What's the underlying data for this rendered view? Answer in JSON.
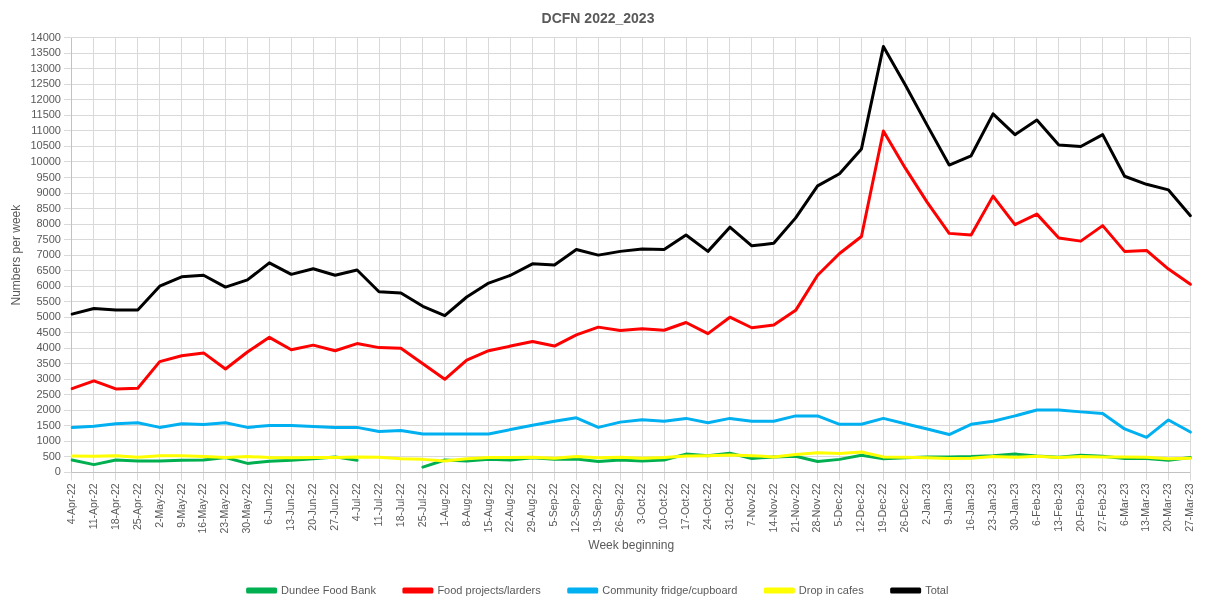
{
  "chart_data": {
    "type": "line",
    "title": "DCFN 2022_2023",
    "xlabel": "Week beginning",
    "ylabel": "Numbers per week",
    "categories": [
      "4-Apr-22",
      "11-Apr-22",
      "18-Apr-22",
      "25-Apr-22",
      "2-May-22",
      "9-May-22",
      "16-May-22",
      "23-May-22",
      "30-May-22",
      "6-Jun-22",
      "13-Jun-22",
      "20-Jun-22",
      "27-Jun-22",
      "4-Jul-22",
      "11-Jul-22",
      "18-Jul-22",
      "25-Jul-22",
      "1-Aug-22",
      "8-Aug-22",
      "15-Aug-22",
      "22-Aug-22",
      "29-Aug-22",
      "5-Sep-22",
      "12-Sep-22",
      "19-Sep-22",
      "26-Sep-22",
      "3-Oct-22",
      "10-Oct-22",
      "17-Oct-22",
      "24-Oct-22",
      "31-Oct-22",
      "7-Nov-22",
      "14-Nov-22",
      "21-Nov-22",
      "28-Nov-22",
      "5-Dec-22",
      "12-Dec-22",
      "19-Dec-22",
      "26-Dec-22",
      "2-Jan-23",
      "9-Jan-23",
      "16-Jan-23",
      "23-Jan-23",
      "30-Jan-23",
      "6-Feb-23",
      "13-Feb-23",
      "20-Feb-23",
      "27-Feb-23",
      "6-Mar-23",
      "13-Mar-23",
      "20-Mar-23",
      "27-Mar-23"
    ],
    "series": [
      {
        "name": "Dundee Food Bank",
        "color": "#00b050",
        "values": [
          400,
          250,
          400,
          370,
          370,
          390,
          400,
          480,
          290,
          360,
          390,
          440,
          500,
          390,
          null,
          null,
          170,
          400,
          370,
          420,
          400,
          470,
          420,
          430,
          350,
          400,
          370,
          400,
          590,
          540,
          620,
          450,
          500,
          520,
          350,
          420,
          550,
          440,
          470,
          500,
          500,
          510,
          540,
          590,
          530,
          490,
          550,
          520,
          450,
          450,
          390,
          480
        ]
      },
      {
        "name": "Food projects/larders",
        "color": "#ff0000",
        "values": [
          2700,
          2950,
          2690,
          2710,
          3570,
          3760,
          3850,
          3330,
          3880,
          4350,
          3950,
          4100,
          3920,
          4150,
          4020,
          4000,
          3500,
          3000,
          3620,
          3920,
          4070,
          4220,
          4070,
          4430,
          4680,
          4570,
          4630,
          4580,
          4830,
          4470,
          5000,
          4660,
          4750,
          5220,
          6350,
          7050,
          7600,
          11000,
          9800,
          8700,
          7700,
          7650,
          8900,
          7980,
          8320,
          7550,
          7450,
          7950,
          7120,
          7150,
          6550,
          6060
        ]
      },
      {
        "name": "Community fridge/cupboard",
        "color": "#00b0f0",
        "values": [
          1450,
          1490,
          1570,
          1600,
          1450,
          1570,
          1540,
          1600,
          1450,
          1510,
          1510,
          1480,
          1450,
          1450,
          1320,
          1350,
          1240,
          1240,
          1240,
          1240,
          1380,
          1520,
          1650,
          1760,
          1450,
          1620,
          1700,
          1650,
          1740,
          1600,
          1740,
          1650,
          1650,
          1820,
          1820,
          1550,
          1550,
          1740,
          1570,
          1400,
          1220,
          1550,
          1650,
          1820,
          2010,
          2010,
          1950,
          1900,
          1400,
          1130,
          1690,
          1300
        ]
      },
      {
        "name": "Drop in cafes",
        "color": "#ffff00",
        "values": [
          530,
          520,
          540,
          490,
          540,
          540,
          510,
          480,
          510,
          480,
          470,
          480,
          480,
          500,
          490,
          440,
          420,
          370,
          440,
          480,
          480,
          490,
          460,
          510,
          470,
          490,
          460,
          480,
          530,
          540,
          560,
          540,
          500,
          580,
          630,
          610,
          660,
          500,
          490,
          470,
          450,
          460,
          510,
          490,
          520,
          480,
          510,
          500,
          500,
          490,
          440,
          460
        ]
      },
      {
        "name": "Total",
        "color": "#000000",
        "values": [
          5100,
          5280,
          5230,
          5230,
          6000,
          6300,
          6350,
          5970,
          6200,
          6750,
          6380,
          6560,
          6350,
          6520,
          5820,
          5780,
          5350,
          5050,
          5650,
          6100,
          6350,
          6720,
          6680,
          7180,
          7000,
          7120,
          7200,
          7180,
          7650,
          7120,
          7900,
          7300,
          7380,
          8200,
          9230,
          9620,
          10420,
          13720,
          12480,
          11180,
          9900,
          10200,
          11550,
          10880,
          11350,
          10550,
          10500,
          10880,
          9540,
          9280,
          9100,
          8270
        ]
      }
    ],
    "ylim": [
      0,
      14000
    ],
    "yticks": [
      0,
      500,
      1000,
      1500,
      2000,
      2500,
      3000,
      3500,
      4000,
      4500,
      5000,
      5500,
      6000,
      6500,
      7000,
      7500,
      8000,
      8500,
      9000,
      9500,
      10000,
      10500,
      11000,
      11500,
      12000,
      12500,
      13000,
      13500,
      14000
    ],
    "grid": true,
    "legend": "bottom",
    "marker": "none",
    "line_style": "solid"
  }
}
